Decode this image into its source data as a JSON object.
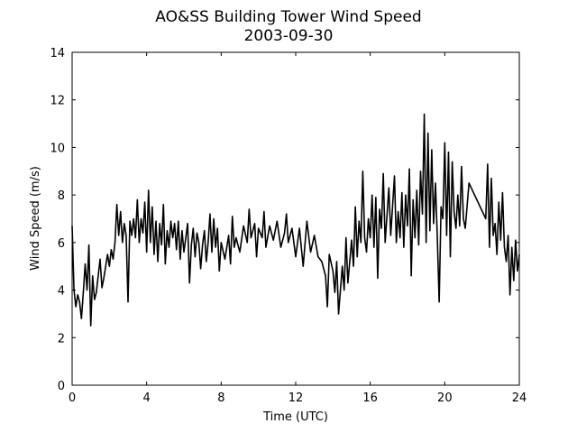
{
  "chart_data": {
    "type": "line",
    "title": "AO&SS Building Tower Wind Speed",
    "subtitle": "2003-09-30",
    "xlabel": "Time (UTC)",
    "ylabel": "Wind Speed (m/s)",
    "color": "#000000",
    "x": [
      0.0,
      0.1,
      0.2,
      0.3,
      0.4,
      0.5,
      0.6,
      0.7,
      0.8,
      0.9,
      1.0,
      1.1,
      1.2,
      1.3,
      1.4,
      1.5,
      1.6,
      1.7,
      1.8,
      1.9,
      2.0,
      2.1,
      2.2,
      2.3,
      2.4,
      2.5,
      2.6,
      2.7,
      2.8,
      2.9,
      3.0,
      3.1,
      3.2,
      3.3,
      3.4,
      3.5,
      3.6,
      3.7,
      3.8,
      3.9,
      4.0,
      4.1,
      4.2,
      4.3,
      4.4,
      4.5,
      4.6,
      4.7,
      4.8,
      4.9,
      5.0,
      5.1,
      5.2,
      5.3,
      5.4,
      5.5,
      5.6,
      5.7,
      5.8,
      5.9,
      6.0,
      6.2,
      6.3,
      6.4,
      6.5,
      6.6,
      6.7,
      6.8,
      6.9,
      7.0,
      7.1,
      7.2,
      7.3,
      7.4,
      7.5,
      7.6,
      7.7,
      7.8,
      7.9,
      8.0,
      8.2,
      8.4,
      8.5,
      8.6,
      8.7,
      8.8,
      9.0,
      9.2,
      9.4,
      9.5,
      9.6,
      9.8,
      9.9,
      10.0,
      10.2,
      10.3,
      10.4,
      10.6,
      10.8,
      11.0,
      11.2,
      11.4,
      11.5,
      11.6,
      11.8,
      12.0,
      12.2,
      12.4,
      12.6,
      12.8,
      13.0,
      13.2,
      13.4,
      13.6,
      13.7,
      13.8,
      14.0,
      14.1,
      14.2,
      14.3,
      14.4,
      14.5,
      14.6,
      14.7,
      14.8,
      15.0,
      15.1,
      15.2,
      15.3,
      15.4,
      15.5,
      15.6,
      15.7,
      15.8,
      15.9,
      16.0,
      16.1,
      16.2,
      16.3,
      16.4,
      16.5,
      16.6,
      16.7,
      16.8,
      17.0,
      17.1,
      17.3,
      17.4,
      17.5,
      17.6,
      17.7,
      17.8,
      17.9,
      18.0,
      18.1,
      18.2,
      18.3,
      18.4,
      18.5,
      18.6,
      18.7,
      18.8,
      18.9,
      19.0,
      19.1,
      19.2,
      19.3,
      19.4,
      19.5,
      19.6,
      19.7,
      19.8,
      19.9,
      20.0,
      20.1,
      20.2,
      20.3,
      20.4,
      20.5,
      20.6,
      20.7,
      20.8,
      20.9,
      21.0,
      21.1,
      21.3,
      22.2,
      22.3,
      22.4,
      22.5,
      22.6,
      22.7,
      22.8,
      22.9,
      23.0,
      23.1,
      23.2,
      23.3,
      23.4,
      23.5,
      23.6,
      23.7,
      23.8,
      23.9,
      24.0
    ],
    "values": [
      6.7,
      4.0,
      3.3,
      3.8,
      3.5,
      2.8,
      3.9,
      5.1,
      4.0,
      5.9,
      2.5,
      4.6,
      3.6,
      3.9,
      4.6,
      5.3,
      4.1,
      4.5,
      5.0,
      5.5,
      5.0,
      5.7,
      5.3,
      6.0,
      7.6,
      6.3,
      7.3,
      6.0,
      6.8,
      6.3,
      3.5,
      6.9,
      6.3,
      7.0,
      6.2,
      7.8,
      6.0,
      7.0,
      6.4,
      7.7,
      5.6,
      8.2,
      6.0,
      7.5,
      5.5,
      6.9,
      5.2,
      6.8,
      5.9,
      7.6,
      5.1,
      6.5,
      5.8,
      6.9,
      6.2,
      6.8,
      5.7,
      6.9,
      5.3,
      6.5,
      5.6,
      6.8,
      4.3,
      5.9,
      6.6,
      5.4,
      6.4,
      6.0,
      4.9,
      5.9,
      6.5,
      5.2,
      6.0,
      7.2,
      5.6,
      7.0,
      5.8,
      6.6,
      4.8,
      6.0,
      5.3,
      6.3,
      5.1,
      7.1,
      5.8,
      6.2,
      5.6,
      6.7,
      6.0,
      7.4,
      6.2,
      6.8,
      5.4,
      6.6,
      6.2,
      7.3,
      5.8,
      6.7,
      6.1,
      6.9,
      5.8,
      6.4,
      7.2,
      6.0,
      6.6,
      5.4,
      6.6,
      5.0,
      6.9,
      5.6,
      6.3,
      5.4,
      5.2,
      4.6,
      3.3,
      5.5,
      4.8,
      3.9,
      5.2,
      3.0,
      4.0,
      5.0,
      4.0,
      6.2,
      4.3,
      6.1,
      5.0,
      7.5,
      5.4,
      6.9,
      6.0,
      9.0,
      6.2,
      5.6,
      7.0,
      6.2,
      8.0,
      5.8,
      7.9,
      4.5,
      7.4,
      6.6,
      8.9,
      6.0,
      8.3,
      6.3,
      8.8,
      6.0,
      7.3,
      6.2,
      8.1,
      5.8,
      8.0,
      6.7,
      9.1,
      4.6,
      7.8,
      6.2,
      8.2,
      5.9,
      9.0,
      7.2,
      11.4,
      6.0,
      10.6,
      6.5,
      9.9,
      6.8,
      8.5,
      6.2,
      3.5,
      7.5,
      7.0,
      10.2,
      6.3,
      9.8,
      5.4,
      9.4,
      7.3,
      6.6,
      8.0,
      6.7,
      9.2,
      7.0,
      6.6,
      8.5,
      7.0,
      9.3,
      5.8,
      8.7,
      6.3,
      6.8,
      5.5,
      7.7,
      6.1,
      8.1,
      5.8,
      5.2,
      6.3,
      3.8,
      5.8,
      4.4,
      6.1,
      4.8,
      5.5
    ],
    "xlim": [
      0,
      24
    ],
    "xticks": [
      0,
      4,
      8,
      12,
      16,
      20,
      24
    ],
    "ylim": [
      0,
      14
    ],
    "yticks": [
      0,
      2,
      4,
      6,
      8,
      10,
      12,
      14
    ]
  }
}
